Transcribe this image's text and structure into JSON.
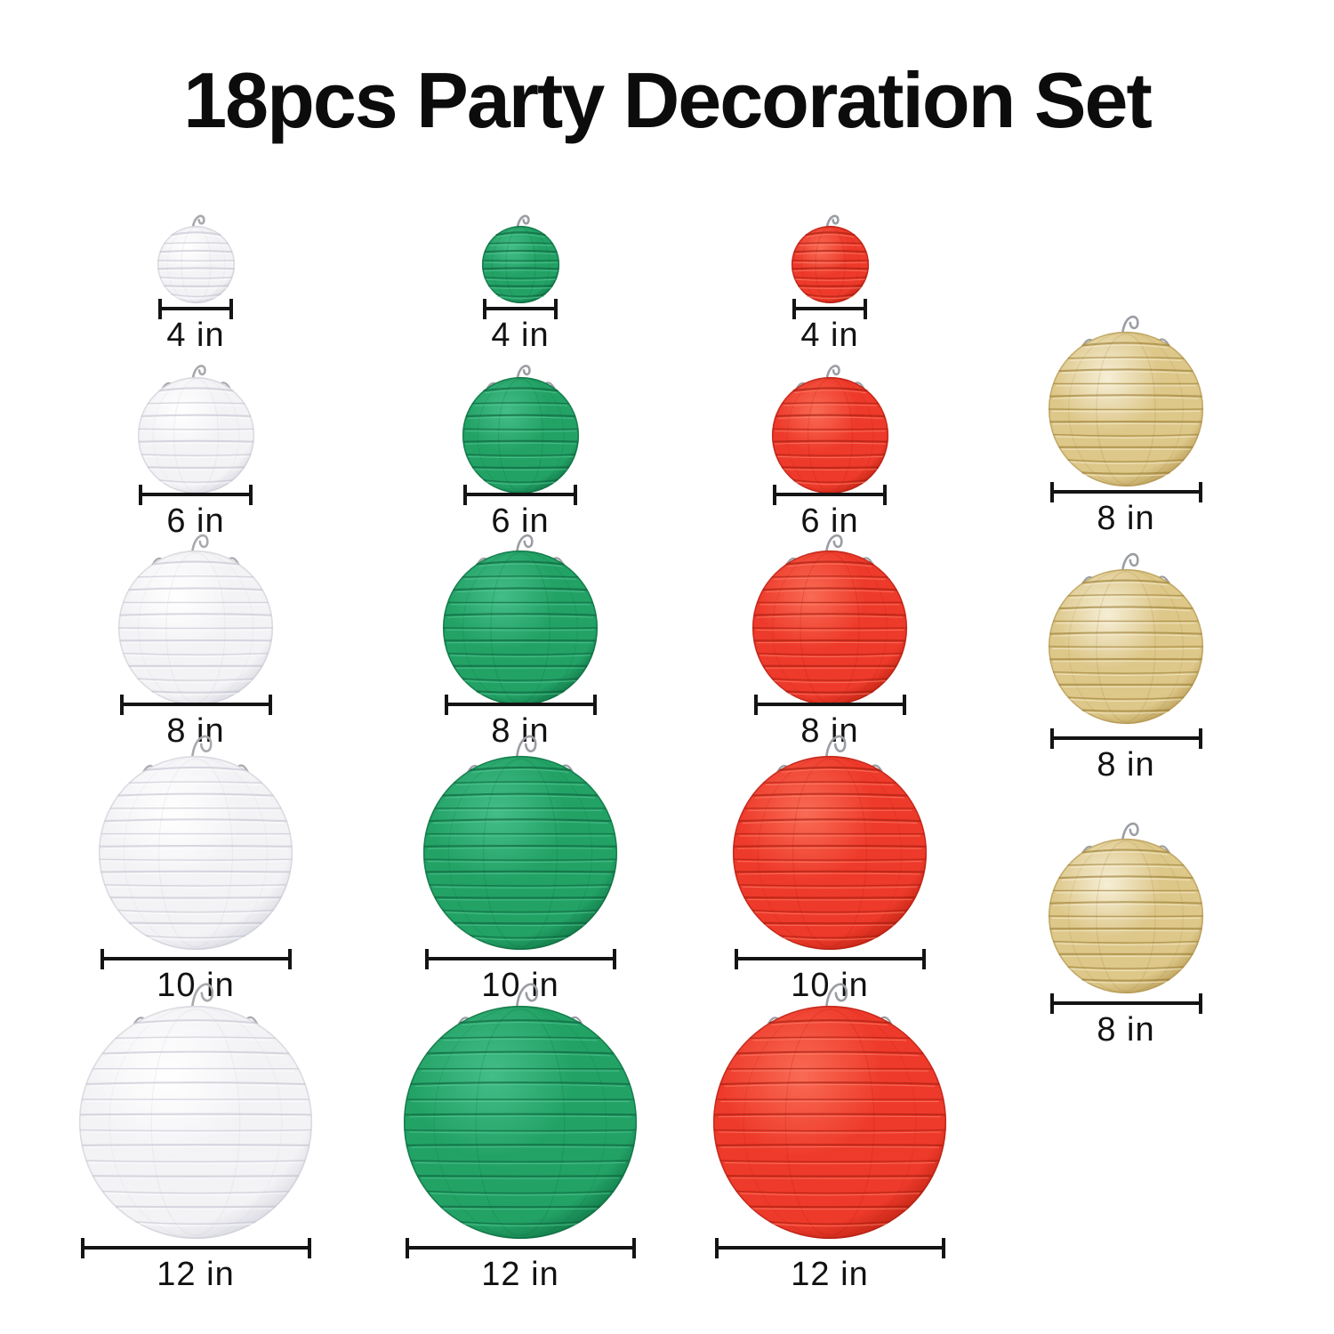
{
  "title": "18pcs Party Decoration Set",
  "unit": "in",
  "piece_count": 18,
  "measurement_line_color": "#141414",
  "columns": [
    {
      "id": "white",
      "lantern_color_name": "white",
      "colors": {
        "light": "#ffffff",
        "base": "#f3f3f6",
        "dark": "#d2d2dc",
        "rib": "#c2c2ce",
        "rib_light": "#ffffff",
        "outline": "#c6c6d0",
        "hook": "#a8a8ae"
      },
      "items": [
        {
          "size_label": "4 in",
          "inches": 4
        },
        {
          "size_label": "6 in",
          "inches": 6
        },
        {
          "size_label": "8 in",
          "inches": 8
        },
        {
          "size_label": "10 in",
          "inches": 10
        },
        {
          "size_label": "12 in",
          "inches": 12
        }
      ]
    },
    {
      "id": "green",
      "lantern_color_name": "green",
      "colors": {
        "light": "#44bd88",
        "base": "#23a266",
        "dark": "#0d6f41",
        "rib": "#0c5e38",
        "rib_light": "#63cf9f",
        "outline": "#0b6339",
        "hook": "#9a9da3"
      },
      "items": [
        {
          "size_label": "4 in",
          "inches": 4
        },
        {
          "size_label": "6 in",
          "inches": 6
        },
        {
          "size_label": "8 in",
          "inches": 8
        },
        {
          "size_label": "10 in",
          "inches": 10
        },
        {
          "size_label": "12 in",
          "inches": 12
        }
      ]
    },
    {
      "id": "red",
      "lantern_color_name": "red",
      "colors": {
        "light": "#f96b55",
        "base": "#ee3a2b",
        "dark": "#b7200f",
        "rib": "#a11c0e",
        "rib_light": "#ff9078",
        "outline": "#a81c10",
        "hook": "#9a9da3"
      },
      "items": [
        {
          "size_label": "4 in",
          "inches": 4
        },
        {
          "size_label": "6 in",
          "inches": 6
        },
        {
          "size_label": "8 in",
          "inches": 8
        },
        {
          "size_label": "10 in",
          "inches": 10
        },
        {
          "size_label": "12 in",
          "inches": 12
        }
      ]
    },
    {
      "id": "gold",
      "lantern_color_name": "gold",
      "colors": {
        "light": "#f6eed6",
        "base": "#ddc789",
        "dark": "#b3954e",
        "rib": "#96792f",
        "rib_light": "#fbf5e3",
        "outline": "#ad8f49",
        "hook": "#9a9da3"
      },
      "items": [
        {
          "size_label": "8 in",
          "inches": 8
        },
        {
          "size_label": "8 in",
          "inches": 8
        },
        {
          "size_label": "8 in",
          "inches": 8
        }
      ]
    }
  ]
}
